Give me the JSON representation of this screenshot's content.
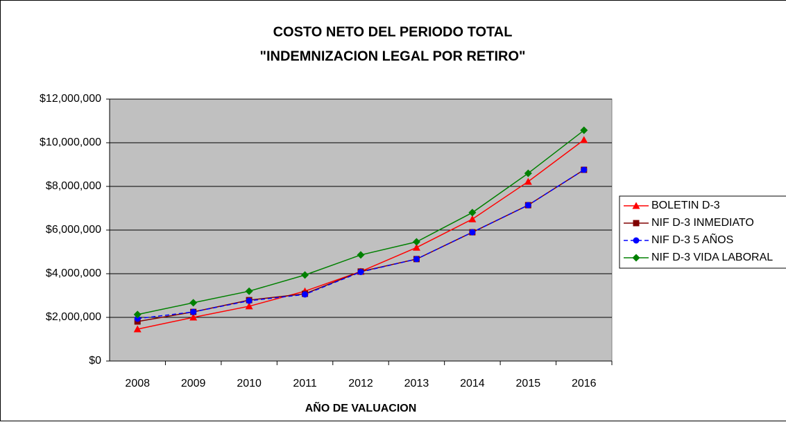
{
  "chart_data": {
    "type": "line",
    "title": "COSTO NETO DEL PERIODO TOTAL",
    "subtitle": "\"INDEMNIZACION LEGAL POR RETIRO\"",
    "x_label": "AÑO DE VALUACION",
    "categories": [
      "2008",
      "2009",
      "2010",
      "2011",
      "2012",
      "2013",
      "2014",
      "2015",
      "2016"
    ],
    "series": [
      {
        "name": "BOLETIN D-3",
        "color": "#ff0000",
        "marker": "triangle",
        "dashed": false,
        "values": [
          1460000,
          2000000,
          2510000,
          3200000,
          4100000,
          5200000,
          6500000,
          8220000,
          10130000
        ]
      },
      {
        "name": "NIF D-3 INMEDIATO",
        "color": "#800000",
        "marker": "square",
        "dashed": false,
        "values": [
          1810000,
          2250000,
          2790000,
          3080000,
          4100000,
          4670000,
          5900000,
          7140000,
          8760000
        ]
      },
      {
        "name": "NIF D-3 5 AÑOS",
        "color": "#0000ff",
        "marker": "circle",
        "dashed": true,
        "values": [
          1940000,
          2250000,
          2760000,
          3050000,
          4080000,
          4670000,
          5900000,
          7140000,
          8760000
        ]
      },
      {
        "name": "NIF D-3 VIDA LABORAL",
        "color": "#008000",
        "marker": "diamond",
        "dashed": false,
        "values": [
          2130000,
          2670000,
          3200000,
          3940000,
          4860000,
          5460000,
          6800000,
          8600000,
          10570000
        ]
      }
    ],
    "ylim": [
      0,
      12000000
    ],
    "yticks": [
      {
        "value": 0,
        "label": "$0"
      },
      {
        "value": 2000000,
        "label": "$2,000,000"
      },
      {
        "value": 4000000,
        "label": "$4,000,000"
      },
      {
        "value": 6000000,
        "label": "$6,000,000"
      },
      {
        "value": 8000000,
        "label": "$8,000,000"
      },
      {
        "value": 10000000,
        "label": "$10,000,000"
      },
      {
        "value": 12000000,
        "label": "$12,000,000"
      }
    ],
    "grid": true,
    "legend": "right"
  }
}
